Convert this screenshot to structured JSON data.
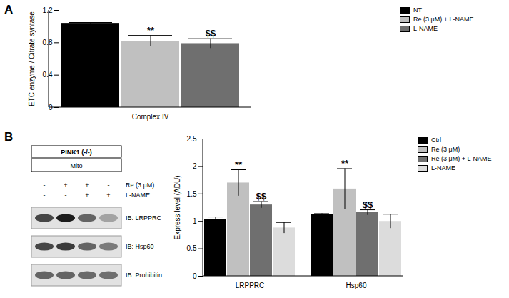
{
  "panels": [
    "A",
    "B"
  ],
  "chart_data": [
    {
      "type": "bar",
      "categories": [
        "Complex IV"
      ],
      "ylabel": "ETC enzyme / Citrate syntase",
      "ylim": [
        0,
        1.2
      ],
      "yticks": [
        0,
        0.4,
        0.8,
        1.2
      ],
      "grid": false,
      "legend": "right",
      "series": [
        {
          "name": "NT",
          "color": "#000000",
          "values": [
            1.04
          ],
          "errors": [
            0.01
          ],
          "annotations": [
            null
          ]
        },
        {
          "name": "Re (3 μM) + L-NAME",
          "color": "#c0c0c0",
          "values": [
            0.82
          ],
          "errors": [
            0.07
          ],
          "annotations": [
            "**"
          ]
        },
        {
          "name": "L-NAME",
          "color": "#6f6f6f",
          "values": [
            0.79
          ],
          "errors": [
            0.06
          ],
          "annotations": [
            "$$"
          ]
        }
      ]
    },
    {
      "type": "bar",
      "categories": [
        "LRPPRC",
        "Hsp60"
      ],
      "ylabel": "Express level (ADU)",
      "ylim": [
        0,
        2.5
      ],
      "yticks": [
        0,
        0.5,
        1,
        1.5,
        2,
        2.5
      ],
      "grid": false,
      "legend": "right",
      "series": [
        {
          "name": "Ctrl",
          "color": "#000000",
          "values": [
            1.04,
            1.12
          ],
          "errors": [
            0.04,
            0.02
          ],
          "annotations": [
            null,
            null
          ]
        },
        {
          "name": "Re (3 μM)",
          "color": "#c0c0c0",
          "values": [
            1.7,
            1.59
          ],
          "errors": [
            0.24,
            0.37
          ],
          "annotations": [
            "**",
            "**"
          ]
        },
        {
          "name": "Re (3 μM) + L-NAME",
          "color": "#6f6f6f",
          "values": [
            1.3,
            1.16
          ],
          "errors": [
            0.06,
            0.05
          ],
          "annotations": [
            "$$",
            "$$"
          ]
        },
        {
          "name": "L-NAME",
          "color": "#dcdcdc",
          "values": [
            0.88,
            1.0
          ],
          "errors": [
            0.1,
            0.13
          ],
          "annotations": [
            null,
            null
          ]
        }
      ]
    }
  ],
  "blot": {
    "title": "PINK1 (-/-)",
    "fraction": "Mito",
    "treatments": [
      {
        "name": "Re (3 μM)",
        "signs": [
          "-",
          "+",
          "+",
          "-"
        ]
      },
      {
        "name": "L-NAME",
        "signs": [
          "-",
          "-",
          "+",
          "+"
        ]
      }
    ],
    "blots": [
      "IB: LRPPRC",
      "IB: Hsp60",
      "IB: Prohibitin"
    ]
  }
}
